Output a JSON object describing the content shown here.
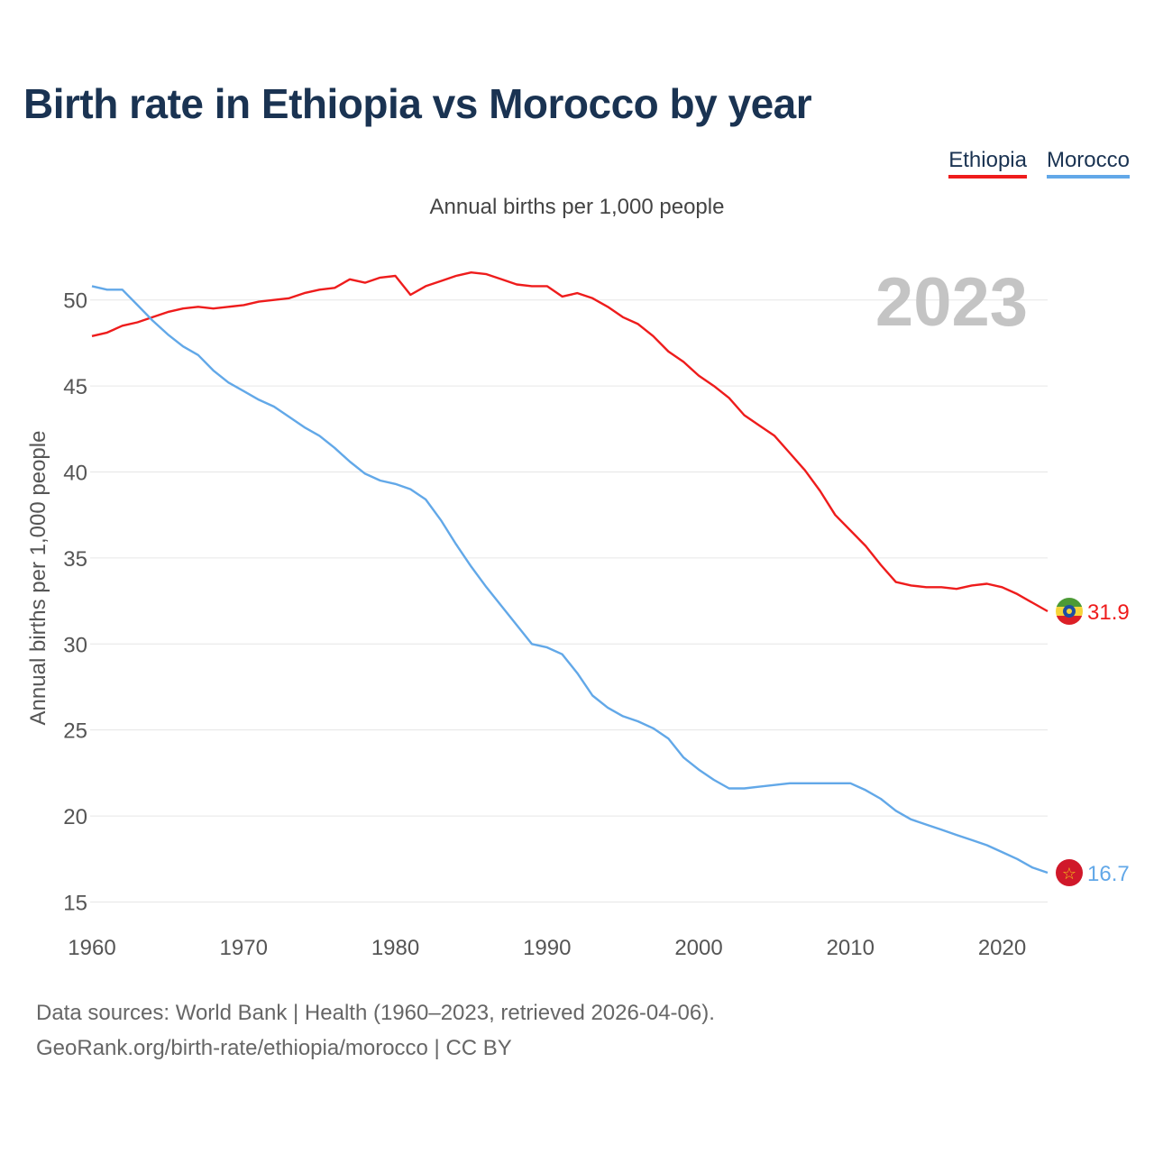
{
  "title": "Birth rate in Ethiopia vs Morocco by year",
  "subtitle": "Annual births per 1,000 people",
  "legend": [
    {
      "label": "Ethiopia",
      "color": "#ee1c1c"
    },
    {
      "label": "Morocco",
      "color": "#62a8e8"
    }
  ],
  "year_display": "2023",
  "footer": {
    "line1": "Data sources: World Bank | Health (1960–2023, retrieved 2026-04-06).",
    "line2": "GeoRank.org/birth-rate/ethiopia/morocco | CC BY"
  },
  "chart_data": {
    "type": "line",
    "title": "Birth rate in Ethiopia vs Morocco by year",
    "ylabel": "Annual births per 1,000 people",
    "xlabel": "",
    "xlim": [
      1960,
      2023
    ],
    "ylim": [
      14.5,
      52.5
    ],
    "yticks": [
      15,
      20,
      25,
      30,
      35,
      40,
      45,
      50
    ],
    "xticks": [
      1960,
      1970,
      1980,
      1990,
      2000,
      2010,
      2020
    ],
    "x": [
      1960,
      1961,
      1962,
      1963,
      1964,
      1965,
      1966,
      1967,
      1968,
      1969,
      1970,
      1971,
      1972,
      1973,
      1974,
      1975,
      1976,
      1977,
      1978,
      1979,
      1980,
      1981,
      1982,
      1983,
      1984,
      1985,
      1986,
      1987,
      1988,
      1989,
      1990,
      1991,
      1992,
      1993,
      1994,
      1995,
      1996,
      1997,
      1998,
      1999,
      2000,
      2001,
      2002,
      2003,
      2004,
      2005,
      2006,
      2007,
      2008,
      2009,
      2010,
      2011,
      2012,
      2013,
      2014,
      2015,
      2016,
      2017,
      2018,
      2019,
      2020,
      2021,
      2022,
      2023
    ],
    "series": [
      {
        "name": "Ethiopia",
        "color": "#ee1c1c",
        "end_label": "31.9",
        "values": [
          47.9,
          48.1,
          48.5,
          48.7,
          49.0,
          49.3,
          49.5,
          49.6,
          49.5,
          49.6,
          49.7,
          49.9,
          50.0,
          50.1,
          50.4,
          50.6,
          50.7,
          51.2,
          51.0,
          51.3,
          51.4,
          50.3,
          50.8,
          51.1,
          51.4,
          51.6,
          51.5,
          51.2,
          50.9,
          50.8,
          50.8,
          50.2,
          50.4,
          50.1,
          49.6,
          49.0,
          48.6,
          47.9,
          47.0,
          46.4,
          45.6,
          45.0,
          44.3,
          43.3,
          42.7,
          42.1,
          41.1,
          40.1,
          38.9,
          37.5,
          36.6,
          35.7,
          34.6,
          33.6,
          33.4,
          33.3,
          33.3,
          33.2,
          33.4,
          33.5,
          33.3,
          32.9,
          32.4,
          31.9
        ]
      },
      {
        "name": "Morocco",
        "color": "#62a8e8",
        "end_label": "16.7",
        "values": [
          50.8,
          50.6,
          50.6,
          49.7,
          48.8,
          48.0,
          47.3,
          46.8,
          45.9,
          45.2,
          44.7,
          44.2,
          43.8,
          43.2,
          42.6,
          42.1,
          41.4,
          40.6,
          39.9,
          39.5,
          39.3,
          39.0,
          38.4,
          37.2,
          35.8,
          34.5,
          33.3,
          32.2,
          31.1,
          30.0,
          29.8,
          29.4,
          28.3,
          27.0,
          26.3,
          25.8,
          25.5,
          25.1,
          24.5,
          23.4,
          22.7,
          22.1,
          21.6,
          21.6,
          21.7,
          21.8,
          21.9,
          21.9,
          21.9,
          21.9,
          21.9,
          21.5,
          21.0,
          20.3,
          19.8,
          19.5,
          19.2,
          18.9,
          18.6,
          18.3,
          17.9,
          17.5,
          17.0,
          16.7
        ]
      }
    ]
  }
}
